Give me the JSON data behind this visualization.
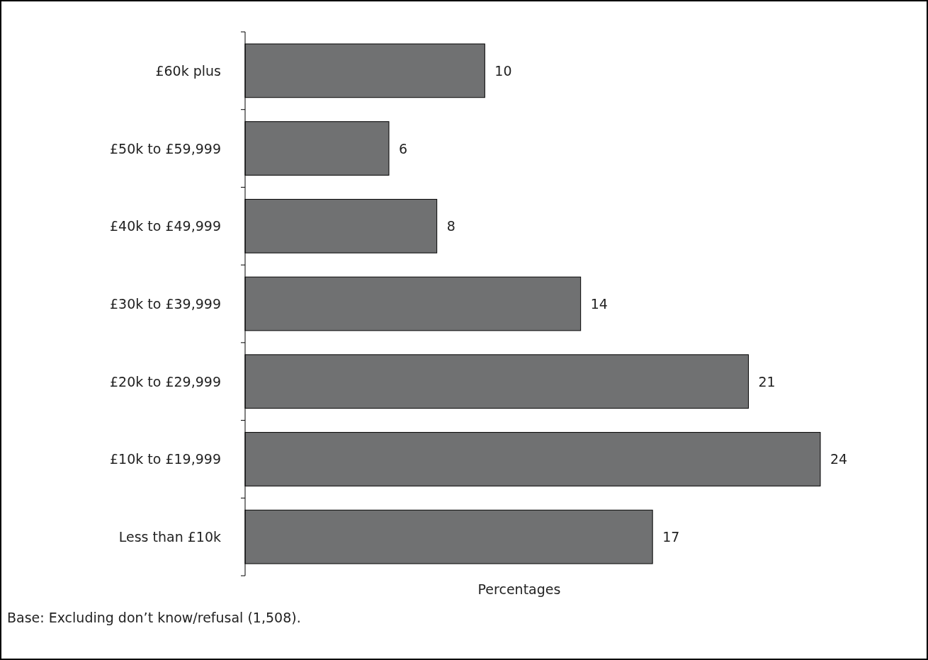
{
  "chart_data": {
    "type": "bar",
    "orientation": "horizontal",
    "categories": [
      "£60k plus",
      "£50k to £59,999",
      "£40k to £49,999",
      "£30k to £39,999",
      "£20k to £29,999",
      "£10k to £19,999",
      "Less than £10k"
    ],
    "values": [
      10,
      6,
      8,
      14,
      21,
      24,
      17
    ],
    "color": "#707172",
    "data_labels": true,
    "xlabel": "Percentages",
    "annotations": [
      "Base: Excluding don’t know/refusal (1,508)."
    ]
  }
}
